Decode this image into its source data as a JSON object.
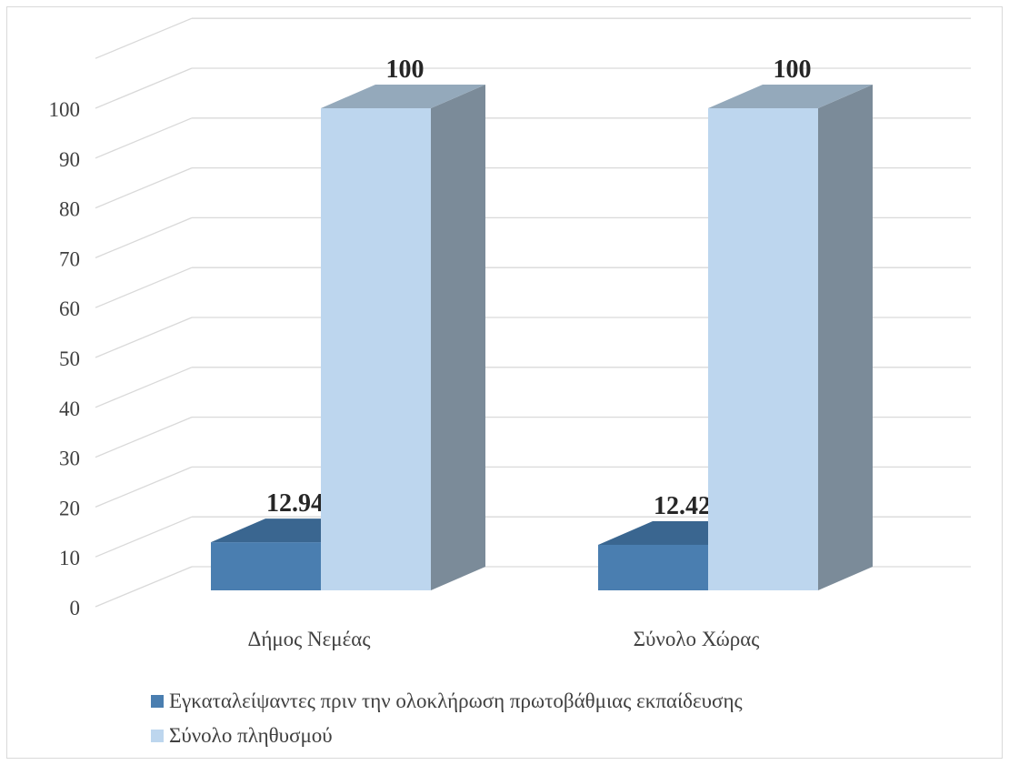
{
  "chart_data": {
    "type": "bar",
    "style": "3d-clustered-column",
    "categories": [
      "Δήμος Νεμέας",
      "Σύνολο Χώρας"
    ],
    "series": [
      {
        "name": "Εγκαταλείψαντες πριν την ολοκλήρωση πρωτοβάθμιας εκπαίδευσης",
        "values": [
          12.94,
          12.42
        ],
        "labels": [
          "12.94",
          "12.42"
        ],
        "color": "#4a7eb0"
      },
      {
        "name": "Σύνολο πληθυσμού",
        "values": [
          100,
          100
        ],
        "labels": [
          "100",
          "100"
        ],
        "color": "#bdd6ee"
      }
    ],
    "yticks": [
      "0",
      "10",
      "20",
      "30",
      "40",
      "50",
      "60",
      "70",
      "80",
      "90",
      "100"
    ],
    "ylim": [
      0,
      110
    ],
    "grid": true,
    "legend_position": "bottom"
  }
}
